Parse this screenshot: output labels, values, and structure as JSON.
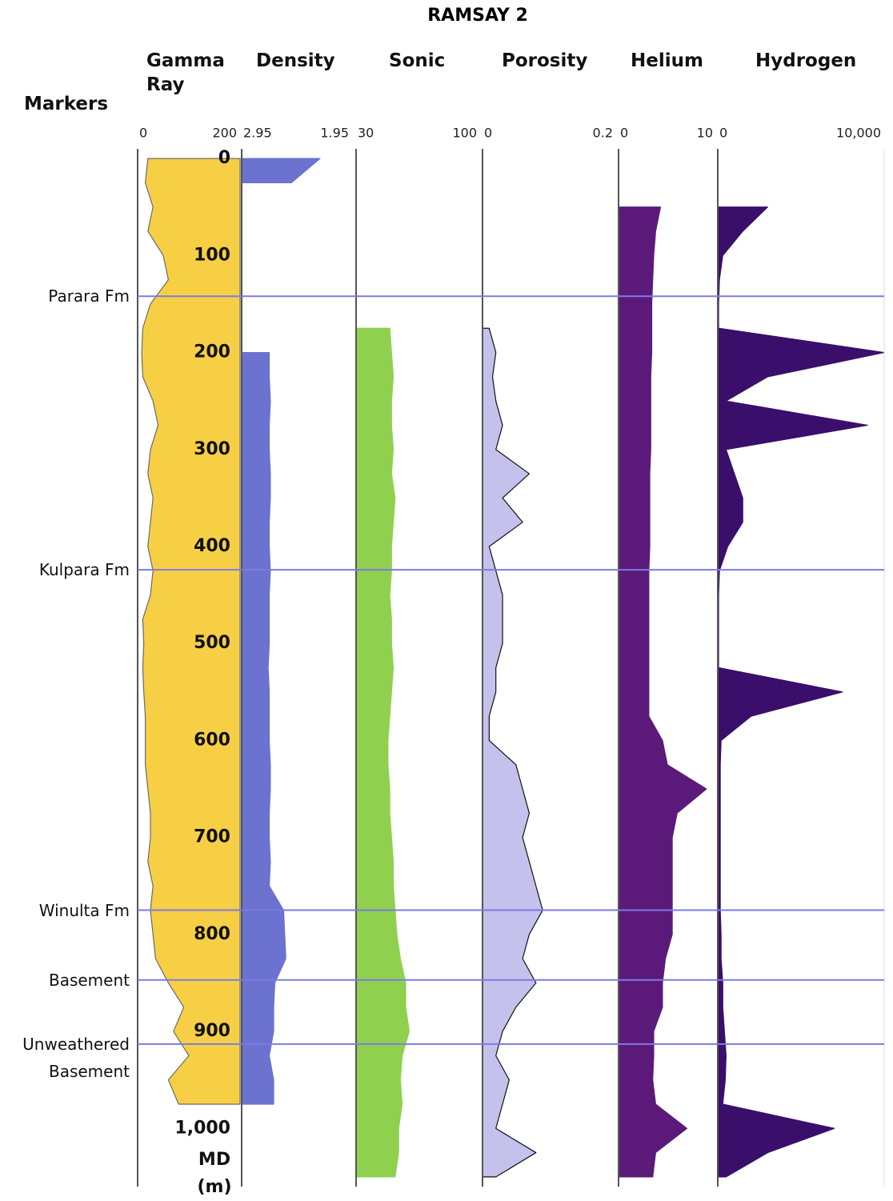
{
  "chart_data": {
    "type": "well_log",
    "title": "RAMSAY 2",
    "markers_label": "Markers",
    "depth_label": "MD (m)",
    "ylim": [
      -10,
      1060
    ],
    "yticks": [
      0,
      100,
      200,
      300,
      400,
      500,
      600,
      700,
      800,
      900,
      {
        "value": 1000,
        "label": "1,000"
      }
    ],
    "depth": [
      0,
      25,
      50,
      75,
      100,
      125,
      150,
      175,
      200,
      225,
      250,
      275,
      300,
      325,
      350,
      375,
      400,
      425,
      450,
      475,
      500,
      525,
      550,
      575,
      600,
      625,
      650,
      675,
      700,
      725,
      750,
      775,
      800,
      825,
      850,
      875,
      900,
      925,
      950,
      975,
      1000,
      1025,
      1050
    ],
    "marker_color": "#7b7be0",
    "markers": [
      {
        "name": "Parara Fm",
        "depth": 142
      },
      {
        "name": "Kulpara Fm",
        "depth": 424
      },
      {
        "name": "Winulta Fm",
        "depth": 775
      },
      {
        "name": "Basement",
        "depth": 847
      },
      {
        "name": "Unweathered Basement",
        "depth": 913
      }
    ],
    "tracks": [
      {
        "name": "Gamma Ray",
        "xlim": [
          0,
          200
        ],
        "xticks": [
          0,
          200
        ],
        "color": "#6b6b6b",
        "fill_color": "#f7cf45",
        "fill": "right",
        "values": [
          20,
          15,
          30,
          20,
          50,
          60,
          25,
          10,
          8,
          10,
          30,
          40,
          25,
          20,
          30,
          25,
          20,
          30,
          25,
          10,
          12,
          10,
          12,
          15,
          15,
          15,
          20,
          25,
          25,
          20,
          30,
          25,
          30,
          35,
          60,
          90,
          70,
          100,
          60,
          80,
          null,
          null,
          null
        ]
      },
      {
        "name": "Density",
        "xlim": [
          2.95,
          1.95
        ],
        "xticks": [
          2.95,
          1.95
        ],
        "color": "#6b72cf",
        "values": [
          2.24,
          2.5,
          null,
          null,
          null,
          null,
          null,
          null,
          2.7,
          2.7,
          2.69,
          2.7,
          2.7,
          2.69,
          2.69,
          2.7,
          2.7,
          2.69,
          2.7,
          2.7,
          2.7,
          2.71,
          2.7,
          2.7,
          2.7,
          2.69,
          2.69,
          2.7,
          2.7,
          2.69,
          2.7,
          2.57,
          2.56,
          2.55,
          2.65,
          2.66,
          2.66,
          2.7,
          2.66,
          2.66,
          null,
          null,
          null
        ]
      },
      {
        "name": "Sonic",
        "xlim": [
          30,
          100
        ],
        "xticks": [
          30,
          100
        ],
        "color": "#8fd14f",
        "values": [
          null,
          null,
          null,
          null,
          null,
          null,
          null,
          49,
          50,
          51,
          50,
          50,
          51,
          50,
          52,
          51,
          50,
          50,
          49,
          50,
          50,
          51,
          50,
          49,
          48,
          48,
          49,
          49,
          50,
          51,
          51,
          52,
          53,
          55,
          58,
          58,
          60,
          56,
          55,
          56,
          54,
          54,
          52
        ]
      },
      {
        "name": "Porosity",
        "xlim": [
          0,
          0.2
        ],
        "xticks": [
          0,
          0.2
        ],
        "color": "#111111",
        "fill_color": "#c4c2ec",
        "values": [
          null,
          null,
          null,
          null,
          null,
          null,
          null,
          0.01,
          0.02,
          0.015,
          0.02,
          0.03,
          0.02,
          0.07,
          0.03,
          0.06,
          0.01,
          0.02,
          0.03,
          0.03,
          0.03,
          0.02,
          0.02,
          0.01,
          0.01,
          0.05,
          0.06,
          0.07,
          0.06,
          0.07,
          0.08,
          0.09,
          0.07,
          0.06,
          0.08,
          0.05,
          0.03,
          0.02,
          0.04,
          0.03,
          0.02,
          0.08,
          0.02
        ]
      },
      {
        "name": "Helium",
        "xlim": [
          0,
          10
        ],
        "xticks": [
          0,
          10
        ],
        "color": "#5b1a7a",
        "values": [
          null,
          null,
          4.3,
          3.8,
          3.6,
          3.5,
          3.4,
          3.4,
          3.4,
          3.3,
          3.3,
          3.3,
          3.3,
          3.2,
          3.2,
          3.2,
          3.2,
          3.1,
          3.1,
          3.1,
          3.1,
          3.1,
          3.1,
          3.1,
          4.5,
          5,
          9,
          6,
          5.5,
          5.5,
          5.5,
          5.5,
          5.5,
          4.8,
          4.5,
          4.5,
          3.6,
          3.6,
          3.5,
          3.8,
          7,
          3.8,
          3.5
        ]
      },
      {
        "name": "Hydrogen",
        "xlim": [
          0,
          10000
        ],
        "xticks": [
          0,
          {
            "value": 10000,
            "label": "10,000"
          }
        ],
        "color": "#3a0f6b",
        "values": [
          null,
          null,
          3000,
          1500,
          300,
          100,
          50,
          50,
          10000,
          3000,
          500,
          9000,
          500,
          1000,
          1500,
          1500,
          600,
          100,
          50,
          50,
          50,
          50,
          7500,
          2000,
          200,
          150,
          150,
          150,
          150,
          150,
          150,
          150,
          200,
          200,
          300,
          300,
          400,
          500,
          450,
          300,
          7000,
          3000,
          500
        ]
      }
    ]
  }
}
